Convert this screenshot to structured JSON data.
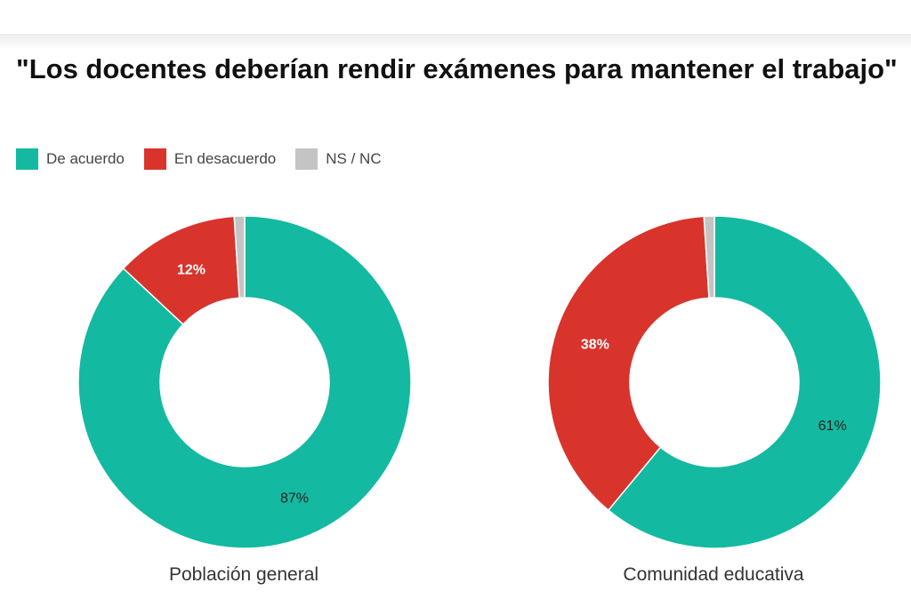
{
  "chart_data": [
    {
      "type": "pie",
      "title": "\"Los docentes deberían rendir exámenes para mantener el trabajo\"",
      "label": "Población general",
      "categories": [
        "De acuerdo",
        "En desacuerdo",
        "NS / NC"
      ],
      "values": [
        87,
        12,
        1
      ],
      "data_labels": [
        "87%",
        "12%",
        ""
      ]
    },
    {
      "type": "pie",
      "title": "\"Los docentes deberían rendir exámenes para mantener el trabajo\"",
      "label": "Comunidad educativa",
      "categories": [
        "De acuerdo",
        "En desacuerdo",
        "NS / NC"
      ],
      "values": [
        61,
        38,
        1
      ],
      "data_labels": [
        "61%",
        "38%",
        ""
      ]
    }
  ],
  "title": "\"Los docentes deberían rendir exámenes para mantener el trabajo\"",
  "legend": [
    {
      "label": "De acuerdo",
      "color": "#13b9a0"
    },
    {
      "label": "En desacuerdo",
      "color": "#d8342c"
    },
    {
      "label": "NS / NC",
      "color": "#c4c4c4"
    }
  ]
}
